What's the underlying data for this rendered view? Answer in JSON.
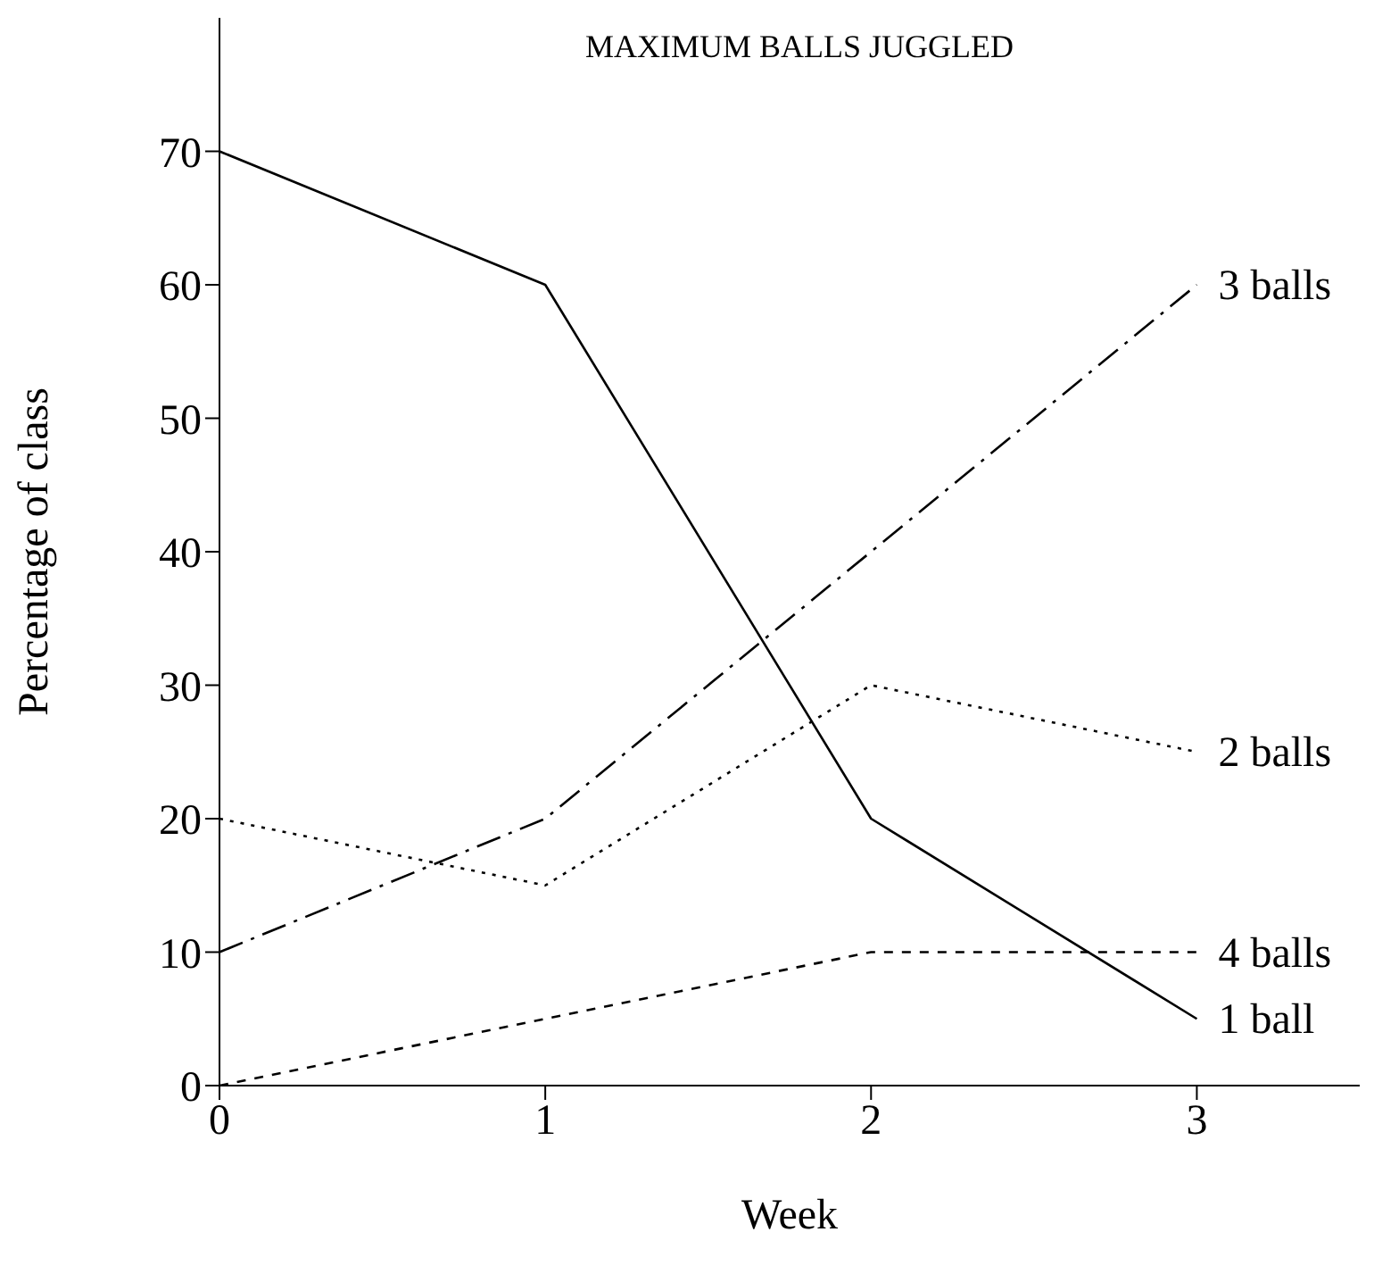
{
  "chart_data": {
    "type": "line",
    "title": "MAXIMUM BALLS JUGGLED",
    "xlabel": "Week",
    "ylabel": "Percentage of class",
    "x": [
      0,
      1,
      2,
      3
    ],
    "xlim": [
      0,
      3.5
    ],
    "xticks": [
      0,
      1,
      2,
      3
    ],
    "ylim": [
      0,
      80
    ],
    "yticks": [
      0,
      10,
      20,
      30,
      40,
      50,
      60,
      70
    ],
    "grid": false,
    "legend": false,
    "marker": "none",
    "series": [
      {
        "name": "1 ball",
        "color": "#000000",
        "line_style": "solid",
        "values": [
          70,
          60,
          20,
          5
        ]
      },
      {
        "name": "2 balls",
        "color": "#000000",
        "line_style": "dotted",
        "values": [
          20,
          15,
          30,
          25
        ]
      },
      {
        "name": "3 balls",
        "color": "#000000",
        "line_style": "dashdot",
        "values": [
          10,
          20,
          40,
          60
        ]
      },
      {
        "name": "4 balls",
        "color": "#000000",
        "line_style": "dashed",
        "values": [
          0,
          5,
          10,
          10
        ]
      }
    ]
  }
}
